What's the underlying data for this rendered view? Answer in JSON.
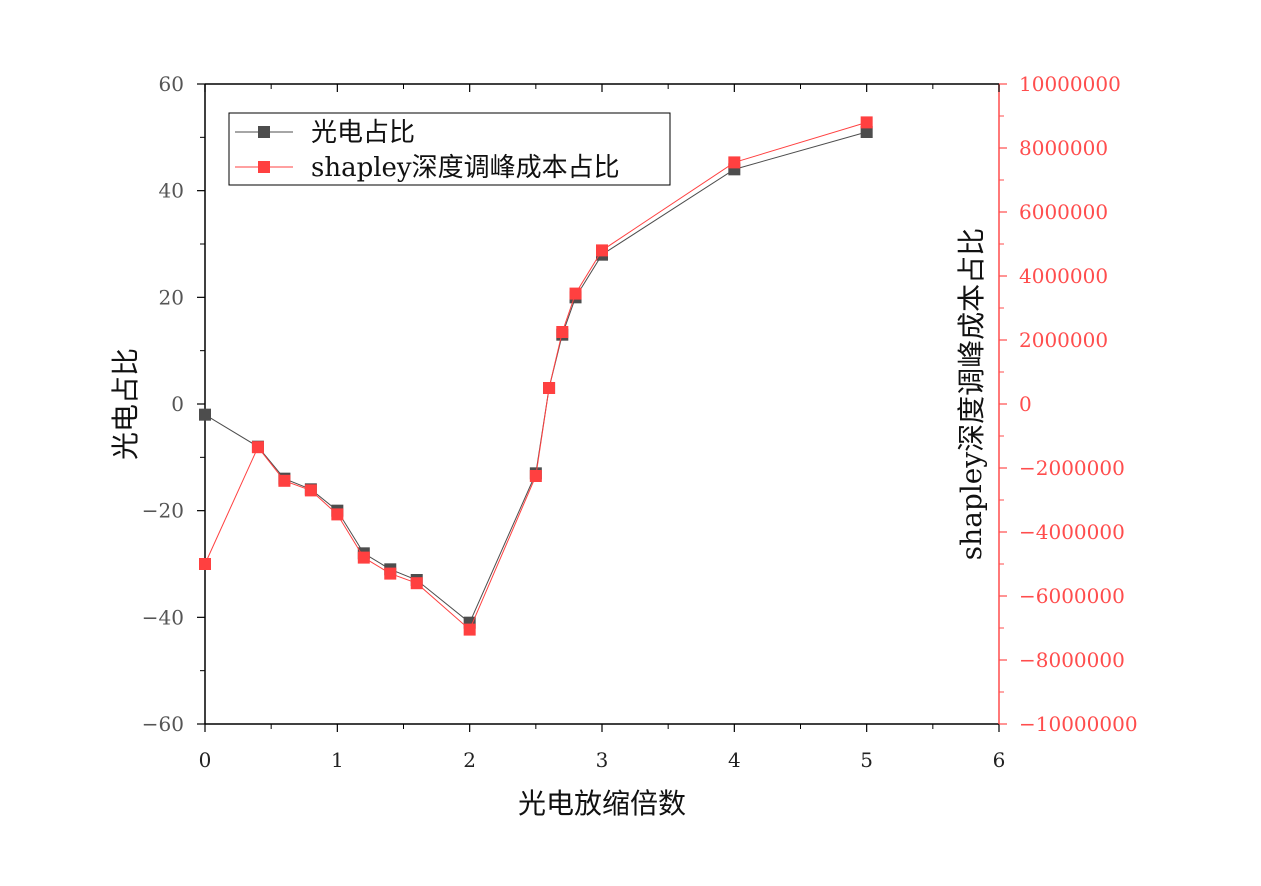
{
  "chart_data": {
    "type": "line",
    "xlabel": "光电放缩倍数",
    "ylabel_left": "光电占比",
    "ylabel_right": "shapley深度调峰成本占比",
    "xlim": [
      0,
      6
    ],
    "ylim_left": [
      -60,
      60
    ],
    "ylim_right": [
      -10000000,
      10000000
    ],
    "x_ticks": [
      "0",
      "1",
      "2",
      "3",
      "4",
      "5",
      "6"
    ],
    "y_left_ticks": [
      "60",
      "40",
      "20",
      "0",
      "−20",
      "−40",
      "−60"
    ],
    "y_right_ticks": [
      "10000000",
      "8000000",
      "6000000",
      "4000000",
      "2000000",
      "0",
      "−2000000",
      "−4000000",
      "−6000000",
      "−8000000",
      "−10000000"
    ],
    "legend_position": "top-left",
    "grid": false,
    "colors": {
      "series1": "#4d4d4d",
      "series2": "#ff4040",
      "right_axis": "#ff4d4d",
      "left_axis": "#000000"
    },
    "series": [
      {
        "name": "光电占比",
        "axis": "left",
        "marker": "square",
        "x": [
          0,
          0.4,
          0.6,
          0.8,
          1.0,
          1.2,
          1.4,
          1.6,
          2.0,
          2.5,
          2.6,
          2.7,
          2.8,
          3.0,
          4.0,
          5.0
        ],
        "y": [
          -2,
          -8,
          -14,
          -16,
          -20,
          -28,
          -31,
          -33,
          -41,
          -13,
          3,
          13,
          20,
          28,
          44,
          51
        ]
      },
      {
        "name": "shapley深度调峰成本占比",
        "axis": "right",
        "marker": "square",
        "x": [
          0,
          0.4,
          0.6,
          0.8,
          1.0,
          1.2,
          1.4,
          1.6,
          2.0,
          2.5,
          2.6,
          2.7,
          2.8,
          3.0,
          4.0,
          5.0
        ],
        "y": [
          -5000000,
          -1350000,
          -2400000,
          -2700000,
          -3450000,
          -4800000,
          -5300000,
          -5600000,
          -7050000,
          -2250000,
          500000,
          2250000,
          3450000,
          4800000,
          7550000,
          8800000
        ]
      }
    ]
  }
}
